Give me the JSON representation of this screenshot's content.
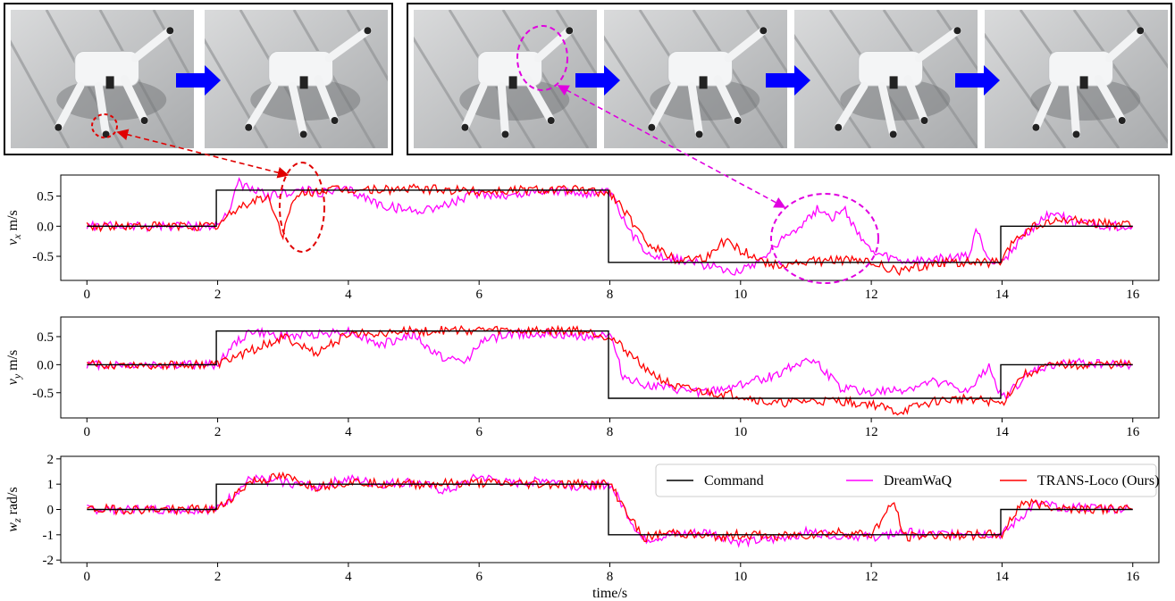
{
  "colors": {
    "command": "#000000",
    "dreamwaq": "#ff00ff",
    "trans_loco": "#ff0000",
    "transition_arrow": "#0000ff"
  },
  "images": {
    "left_panel_frames": 2,
    "right_panel_frames": 4,
    "description_note": null
  },
  "chart_data": [
    {
      "type": "line",
      "ylabel": "v_x m/s",
      "ylim": [
        -0.9,
        0.85
      ],
      "xlim": [
        -0.4,
        16.4
      ],
      "xticks": [
        "0",
        "2",
        "4",
        "6",
        "8",
        "10",
        "12",
        "14",
        "16"
      ],
      "yticks": [
        "0.5",
        "0.0",
        "-0.5"
      ],
      "series": [
        {
          "name": "Command",
          "x": [
            0,
            1.98,
            1.98,
            7.98,
            7.98,
            13.98,
            13.98,
            16
          ],
          "values": [
            0,
            0,
            0.6,
            0.6,
            -0.6,
            -0.6,
            0,
            0
          ]
        },
        {
          "name": "DreamWaQ",
          "x": [
            0,
            2,
            2.2,
            2.3,
            2.5,
            2.8,
            3,
            3.3,
            3.6,
            4,
            4.5,
            5,
            5.5,
            6,
            6.5,
            7,
            7.5,
            8,
            8.3,
            8.6,
            9,
            9.5,
            10,
            10.3,
            10.6,
            11,
            11.2,
            11.4,
            11.6,
            12,
            12.5,
            13,
            13.5,
            13.6,
            13.8,
            14,
            14.3,
            14.6,
            14.8,
            15,
            15.5,
            16
          ],
          "values": [
            0,
            0,
            0.3,
            0.75,
            0.6,
            0.5,
            0.55,
            0.6,
            0.55,
            0.6,
            0.35,
            0.25,
            0.35,
            0.55,
            0.5,
            0.6,
            0.55,
            0.55,
            -0.1,
            -0.45,
            -0.55,
            -0.65,
            -0.75,
            -0.55,
            -0.25,
            0.1,
            0.3,
            0.15,
            0.25,
            -0.45,
            -0.6,
            -0.55,
            -0.5,
            -0.05,
            -0.55,
            -0.6,
            -0.2,
            0.1,
            0.25,
            0.1,
            0.0,
            0.0
          ]
        },
        {
          "name": "TRANS-Loco (Ours)",
          "x": [
            0,
            2,
            2.3,
            2.6,
            2.8,
            2.9,
            3,
            3.1,
            3.3,
            3.6,
            4,
            5,
            6,
            7,
            7.5,
            8,
            8.2,
            8.5,
            9,
            9.5,
            9.8,
            10,
            10.5,
            11,
            11.5,
            12,
            12.4,
            13,
            13.5,
            14,
            14.2,
            14.5,
            15,
            16
          ],
          "values": [
            0,
            0,
            0.3,
            0.45,
            0.45,
            0.1,
            -0.15,
            0.3,
            0.55,
            0.6,
            0.6,
            0.62,
            0.58,
            0.62,
            0.6,
            0.55,
            0.3,
            -0.2,
            -0.55,
            -0.5,
            -0.2,
            -0.4,
            -0.65,
            -0.6,
            -0.55,
            -0.6,
            -0.75,
            -0.6,
            -0.6,
            -0.6,
            -0.2,
            0.0,
            0.1,
            0.0
          ]
        }
      ]
    },
    {
      "type": "line",
      "ylabel": "v_y m/s",
      "ylim": [
        -0.95,
        0.85
      ],
      "xlim": [
        -0.4,
        16.4
      ],
      "xticks": [
        "0",
        "2",
        "4",
        "6",
        "8",
        "10",
        "12",
        "14",
        "16"
      ],
      "yticks": [
        "0.5",
        "0.0",
        "-0.5"
      ],
      "series": [
        {
          "name": "Command",
          "x": [
            0,
            1.98,
            1.98,
            7.98,
            7.98,
            13.98,
            13.98,
            16
          ],
          "values": [
            0,
            0,
            0.6,
            0.6,
            -0.6,
            -0.6,
            0,
            0
          ]
        },
        {
          "name": "DreamWaQ",
          "x": [
            0,
            2,
            2.2,
            2.5,
            3,
            3.5,
            4,
            4.5,
            5,
            5.2,
            5.5,
            5.8,
            6,
            6.5,
            7,
            7.5,
            8,
            8.2,
            8.5,
            9,
            9.5,
            10,
            10.5,
            11,
            11.2,
            11.5,
            12,
            12.5,
            13,
            13.5,
            13.8,
            14,
            14.5,
            15,
            16
          ],
          "values": [
            0,
            0,
            0.3,
            0.6,
            0.5,
            0.55,
            0.6,
            0.35,
            0.55,
            0.3,
            0.1,
            0.05,
            0.4,
            0.55,
            0.55,
            0.5,
            0.55,
            -0.2,
            -0.35,
            -0.45,
            -0.5,
            -0.35,
            -0.2,
            0.1,
            0.0,
            -0.4,
            -0.5,
            -0.45,
            -0.3,
            -0.5,
            0.0,
            -0.6,
            -0.1,
            0.05,
            0.0
          ]
        },
        {
          "name": "TRANS-Loco (Ours)",
          "x": [
            0,
            2,
            2.5,
            3,
            3.5,
            4,
            5,
            6,
            7,
            7.5,
            8,
            8.3,
            8.7,
            9,
            9.5,
            10,
            10.5,
            11,
            11.5,
            12,
            12.4,
            13,
            13.5,
            14,
            14.3,
            14.6,
            15,
            16
          ],
          "values": [
            0,
            0,
            0.25,
            0.5,
            0.2,
            0.55,
            0.6,
            0.62,
            0.6,
            0.62,
            0.5,
            0.2,
            -0.2,
            -0.4,
            -0.5,
            -0.55,
            -0.7,
            -0.65,
            -0.65,
            -0.7,
            -0.85,
            -0.65,
            -0.6,
            -0.7,
            -0.2,
            -0.05,
            0.0,
            0.0
          ]
        }
      ]
    },
    {
      "type": "line",
      "ylabel": "w_z rad/s",
      "xlabel": "time/s",
      "ylim": [
        -2.1,
        2.1
      ],
      "xlim": [
        -0.4,
        16.4
      ],
      "xticks": [
        "0",
        "2",
        "4",
        "6",
        "8",
        "10",
        "12",
        "14",
        "16"
      ],
      "yticks": [
        "2",
        "1",
        "0",
        "-1",
        "-2"
      ],
      "legend": "top-right",
      "series": [
        {
          "name": "Command",
          "x": [
            0,
            1.98,
            1.98,
            7.98,
            7.98,
            13.98,
            13.98,
            16
          ],
          "values": [
            0,
            0,
            1,
            1,
            -1,
            -1,
            0,
            0
          ]
        },
        {
          "name": "DreamWaQ",
          "x": [
            0,
            2,
            2.5,
            3,
            3.5,
            4,
            4.5,
            5,
            5.5,
            6,
            6.5,
            7,
            7.5,
            8,
            8.5,
            9,
            9.5,
            10,
            10.5,
            11,
            11.5,
            12,
            12.5,
            13,
            13.5,
            14,
            14.5,
            15,
            16
          ],
          "values": [
            0,
            0,
            1.2,
            1.1,
            0.9,
            1.2,
            1.0,
            1.1,
            0.7,
            1.3,
            1.0,
            1.2,
            0.9,
            1.0,
            -1.2,
            -1.0,
            -0.9,
            -1.3,
            -1.2,
            -0.9,
            -1.0,
            -1.1,
            -0.9,
            -1.0,
            -0.9,
            -1.0,
            0.2,
            0.1,
            0.0
          ]
        },
        {
          "name": "TRANS-Loco (Ours)",
          "x": [
            0,
            2,
            2.5,
            3,
            3.5,
            4,
            5,
            6,
            7,
            8,
            8.5,
            9,
            9.5,
            10,
            10.5,
            11,
            11.5,
            12,
            12.35,
            12.5,
            13,
            13.5,
            14,
            14.3,
            15,
            16
          ],
          "values": [
            0,
            0,
            1.1,
            1.3,
            0.9,
            1.1,
            1.0,
            1.05,
            1.0,
            1.0,
            -1.1,
            -0.9,
            -1.1,
            -1.0,
            -1.05,
            -1.0,
            -0.9,
            -1.0,
            0.3,
            -1.1,
            -1.0,
            -1.0,
            -1.0,
            0.3,
            0.05,
            0.0
          ]
        }
      ]
    }
  ],
  "legend": {
    "items": [
      "Command",
      "DreamWaQ",
      "TRANS-Loco (Ours)"
    ]
  }
}
